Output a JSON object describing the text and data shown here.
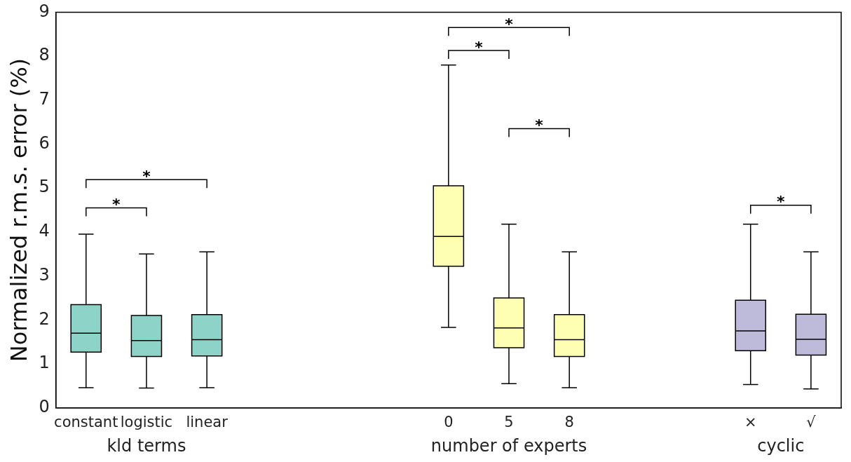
{
  "chart_data": {
    "type": "box",
    "ylabel": "Normalized r.m.s. error (%)",
    "categories": [
      "constant",
      "logistic",
      "linear",
      null,
      null,
      null,
      "0",
      "5",
      "8",
      null,
      null,
      "×",
      "√"
    ],
    "boxes": [
      {
        "low": 0.46,
        "q1": 1.27,
        "median": 1.7,
        "q3": 2.35,
        "high": 3.95
      },
      {
        "low": 0.45,
        "q1": 1.17,
        "median": 1.53,
        "q3": 2.1,
        "high": 3.5
      },
      {
        "low": 0.46,
        "q1": 1.18,
        "median": 1.55,
        "q3": 2.12,
        "high": 3.55
      },
      null,
      null,
      null,
      {
        "low": 1.83,
        "q1": 3.22,
        "median": 3.9,
        "q3": 5.05,
        "high": 7.8
      },
      {
        "low": 0.55,
        "q1": 1.37,
        "median": 1.82,
        "q3": 2.5,
        "high": 4.18
      },
      {
        "low": 0.46,
        "q1": 1.17,
        "median": 1.55,
        "q3": 2.12,
        "high": 3.55
      },
      null,
      null,
      {
        "low": 0.53,
        "q1": 1.3,
        "median": 1.75,
        "q3": 2.45,
        "high": 4.18
      },
      {
        "low": 0.43,
        "q1": 1.2,
        "median": 1.56,
        "q3": 2.13,
        "high": 3.55
      }
    ],
    "colors": [
      "#8dd3c7",
      "#8dd3c7",
      "#8dd3c7",
      null,
      null,
      null,
      "#ffffb3",
      "#ffffb3",
      "#ffffb3",
      null,
      null,
      "#bebada",
      "#bebada"
    ],
    "ylim": [
      0,
      9
    ],
    "yticks": [
      0,
      1,
      2,
      3,
      4,
      5,
      6,
      7,
      8,
      9
    ],
    "grid": false,
    "legend": false,
    "annotations": [
      "kld terms",
      "number of experts",
      "cyclic",
      "*",
      "*",
      "*",
      "*",
      "*",
      "*"
    ]
  }
}
